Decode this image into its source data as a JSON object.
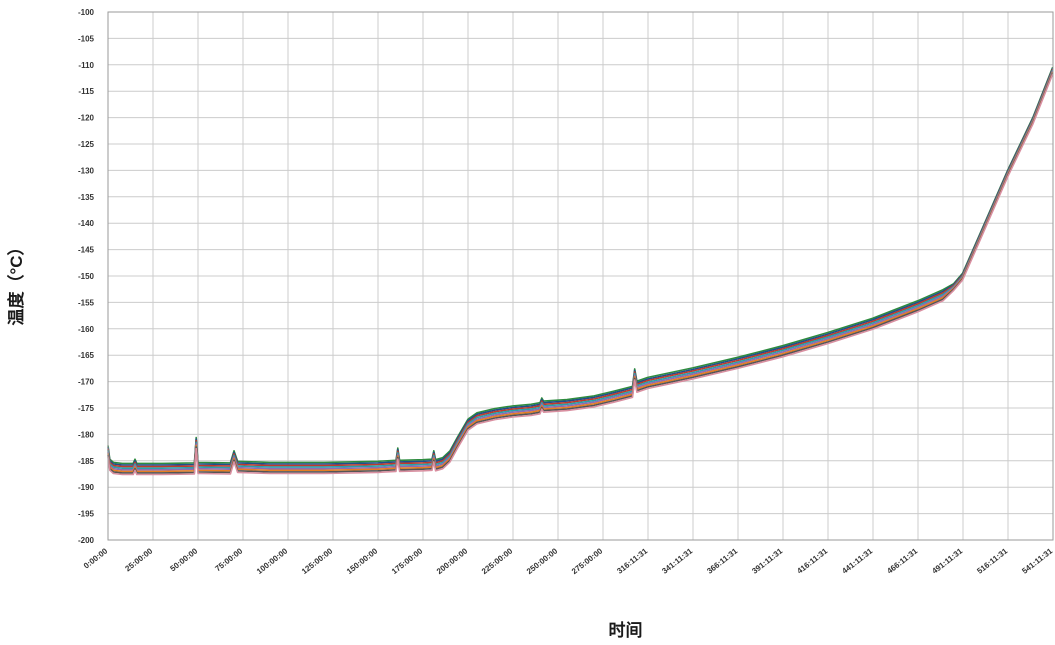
{
  "chart_data": {
    "type": "line",
    "title": "",
    "xlabel": "时间",
    "ylabel": "温度（°C）",
    "ylim": [
      -200,
      -100
    ],
    "ytick_step": 5,
    "grid": true,
    "x_ticks": [
      "0:00:00",
      "25:00:00",
      "50:00:00",
      "75:00:00",
      "100:00:00",
      "125:00:00",
      "150:00:00",
      "175:00:00",
      "200:00:00",
      "225:00:00",
      "250:00:00",
      "275:00:00",
      "316:11:31",
      "341:11:31",
      "366:11:31",
      "391:11:31",
      "416:11:31",
      "441:11:31",
      "466:11:31",
      "491:11:31",
      "516:11:31",
      "541:11:31"
    ],
    "x_unit": "hours",
    "colors": [
      "#2e8b3e",
      "#1f4e8c",
      "#c0392b",
      "#2aa0a8",
      "#8e6bb3",
      "#e67e22",
      "#555555",
      "#d98fa0"
    ],
    "series": [
      {
        "offset": 0.9
      },
      {
        "offset": 0.6
      },
      {
        "offset": 0.3
      },
      {
        "offset": 0.0
      },
      {
        "offset": -0.3
      },
      {
        "offset": -0.6
      },
      {
        "offset": -0.9
      },
      {
        "offset": -1.2
      }
    ],
    "base_curve": [
      [
        0,
        -183.0
      ],
      [
        1,
        -185.6
      ],
      [
        3,
        -186.2
      ],
      [
        8,
        -186.4
      ],
      [
        14,
        -186.4
      ],
      [
        15,
        -185.6
      ],
      [
        16,
        -186.4
      ],
      [
        30,
        -186.4
      ],
      [
        48,
        -186.3
      ],
      [
        49,
        -181.5
      ],
      [
        50,
        -186.2
      ],
      [
        68,
        -186.3
      ],
      [
        70,
        -184.0
      ],
      [
        72,
        -186.0
      ],
      [
        90,
        -186.2
      ],
      [
        120,
        -186.2
      ],
      [
        150,
        -186.0
      ],
      [
        160,
        -185.8
      ],
      [
        161,
        -183.5
      ],
      [
        162,
        -185.8
      ],
      [
        175,
        -185.7
      ],
      [
        180,
        -185.6
      ],
      [
        181,
        -184.0
      ],
      [
        182,
        -185.7
      ],
      [
        186,
        -185.3
      ],
      [
        190,
        -184.0
      ],
      [
        194,
        -181.5
      ],
      [
        200,
        -178.0
      ],
      [
        205,
        -176.8
      ],
      [
        215,
        -176.0
      ],
      [
        225,
        -175.5
      ],
      [
        235,
        -175.2
      ],
      [
        240,
        -174.9
      ],
      [
        241,
        -174.0
      ],
      [
        242,
        -174.6
      ],
      [
        255,
        -174.3
      ],
      [
        270,
        -173.6
      ],
      [
        285,
        -172.7
      ],
      [
        302,
        -171.8
      ],
      [
        304,
        -168.5
      ],
      [
        306,
        -170.8
      ],
      [
        316,
        -170.1
      ],
      [
        341,
        -168.3
      ],
      [
        366,
        -166.3
      ],
      [
        391,
        -164.1
      ],
      [
        416,
        -161.6
      ],
      [
        441,
        -158.9
      ],
      [
        466,
        -155.6
      ],
      [
        480,
        -153.5
      ],
      [
        486,
        -152.0
      ],
      [
        491,
        -150.0
      ],
      [
        500,
        -143.0
      ],
      [
        516,
        -130.5
      ],
      [
        530,
        -120.5
      ],
      [
        541,
        -111.0
      ]
    ]
  }
}
